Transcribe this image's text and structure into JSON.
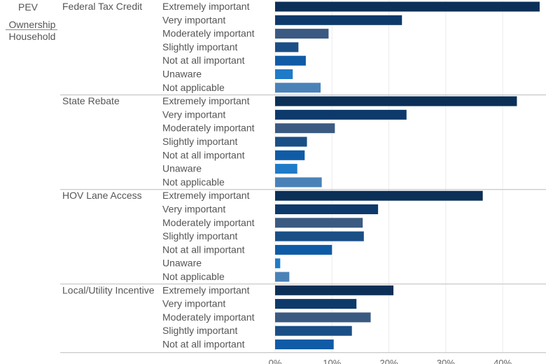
{
  "header": {
    "col1_line1": "PEV",
    "col1_line2": "Ownership",
    "col1_line3": "Household"
  },
  "chart_data": {
    "type": "bar",
    "orientation": "horizontal",
    "xlim": [
      0,
      47
    ],
    "x_ticks": [
      "0%",
      "10%",
      "20%",
      "30%",
      "40%"
    ],
    "x_tick_values": [
      0,
      10,
      20,
      30,
      40
    ],
    "grid": true,
    "groups": [
      {
        "name": "Federal Tax Credit",
        "categories": [
          "Extremely important",
          "Very important",
          "Moderately important",
          "Slightly important",
          "Not at all important",
          "Unaware",
          "Not applicable"
        ],
        "values": [
          46.5,
          22.3,
          9.4,
          4.1,
          5.4,
          3.1,
          8.0
        ]
      },
      {
        "name": "State Rebate",
        "categories": [
          "Extremely important",
          "Very important",
          "Moderately important",
          "Slightly important",
          "Not at all important",
          "Unaware",
          "Not applicable"
        ],
        "values": [
          42.5,
          23.1,
          10.5,
          5.6,
          5.2,
          3.9,
          8.2
        ]
      },
      {
        "name": "HOV Lane Access",
        "categories": [
          "Extremely important",
          "Very important",
          "Moderately important",
          "Slightly important",
          "Not at all important",
          "Unaware",
          "Not applicable"
        ],
        "values": [
          36.5,
          18.1,
          15.4,
          15.6,
          10.0,
          0.9,
          2.5
        ]
      },
      {
        "name": "Local/Utility Incentive",
        "categories": [
          "Extremely important",
          "Very important",
          "Moderately important",
          "Slightly important",
          "Not at all important"
        ],
        "values": [
          20.8,
          14.3,
          16.8,
          13.5,
          10.3
        ]
      }
    ],
    "category_colors": {
      "Extremely important": "#0b2f57",
      "Very important": "#0d3a6b",
      "Moderately important": "#3b5a82",
      "Slightly important": "#1a4f86",
      "Not at all important": "#0f5ba6",
      "Unaware": "#1f7bc8",
      "Not applicable": "#4a82b8"
    }
  }
}
